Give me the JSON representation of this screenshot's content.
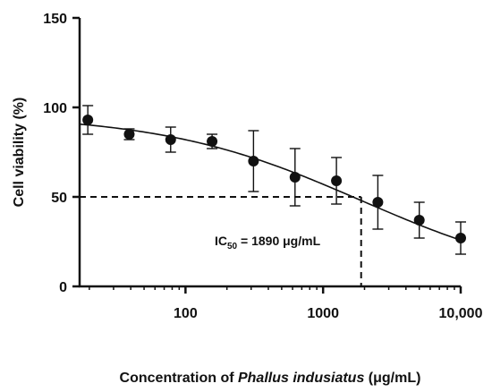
{
  "chart_data": {
    "type": "scatter",
    "x_scale": "log",
    "xlim": [
      17,
      10000
    ],
    "ylim": [
      0,
      150
    ],
    "y_ticks": [
      0,
      50,
      100,
      150
    ],
    "y_tick_labels": [
      "0",
      "50",
      "100",
      "150"
    ],
    "x_ticks": [
      100,
      1000,
      10000
    ],
    "x_tick_labels": [
      "100",
      "1000",
      "10,000"
    ],
    "ylabel": "Cell viability (%)",
    "xlabel_parts": {
      "prefix": "Concentration of ",
      "italic": "Phallus indusiatus",
      "suffix": " (μg/mL)"
    },
    "grid": false,
    "series": [
      {
        "points": [
          {
            "x": 19.5,
            "y": 93,
            "err": 8
          },
          {
            "x": 39,
            "y": 85,
            "err": 3
          },
          {
            "x": 78,
            "y": 82,
            "err": 7
          },
          {
            "x": 156,
            "y": 81,
            "err": 4
          },
          {
            "x": 312,
            "y": 70,
            "err": 17
          },
          {
            "x": 625,
            "y": 61,
            "err": 16
          },
          {
            "x": 1250,
            "y": 59,
            "err": 13
          },
          {
            "x": 2500,
            "y": 47,
            "err": 15
          },
          {
            "x": 5000,
            "y": 37,
            "err": 10
          },
          {
            "x": 10000,
            "y": 27,
            "err": 9
          }
        ],
        "fit": {
          "top": 96,
          "bottom": 0,
          "ic50": 1890,
          "hill": 0.6
        },
        "color": "#111111"
      }
    ],
    "annotation": {
      "x": 1890,
      "y": 50,
      "label_prefix": "IC",
      "label_sub": "50",
      "label_suffix": " = 1890 μg/mL"
    }
  }
}
